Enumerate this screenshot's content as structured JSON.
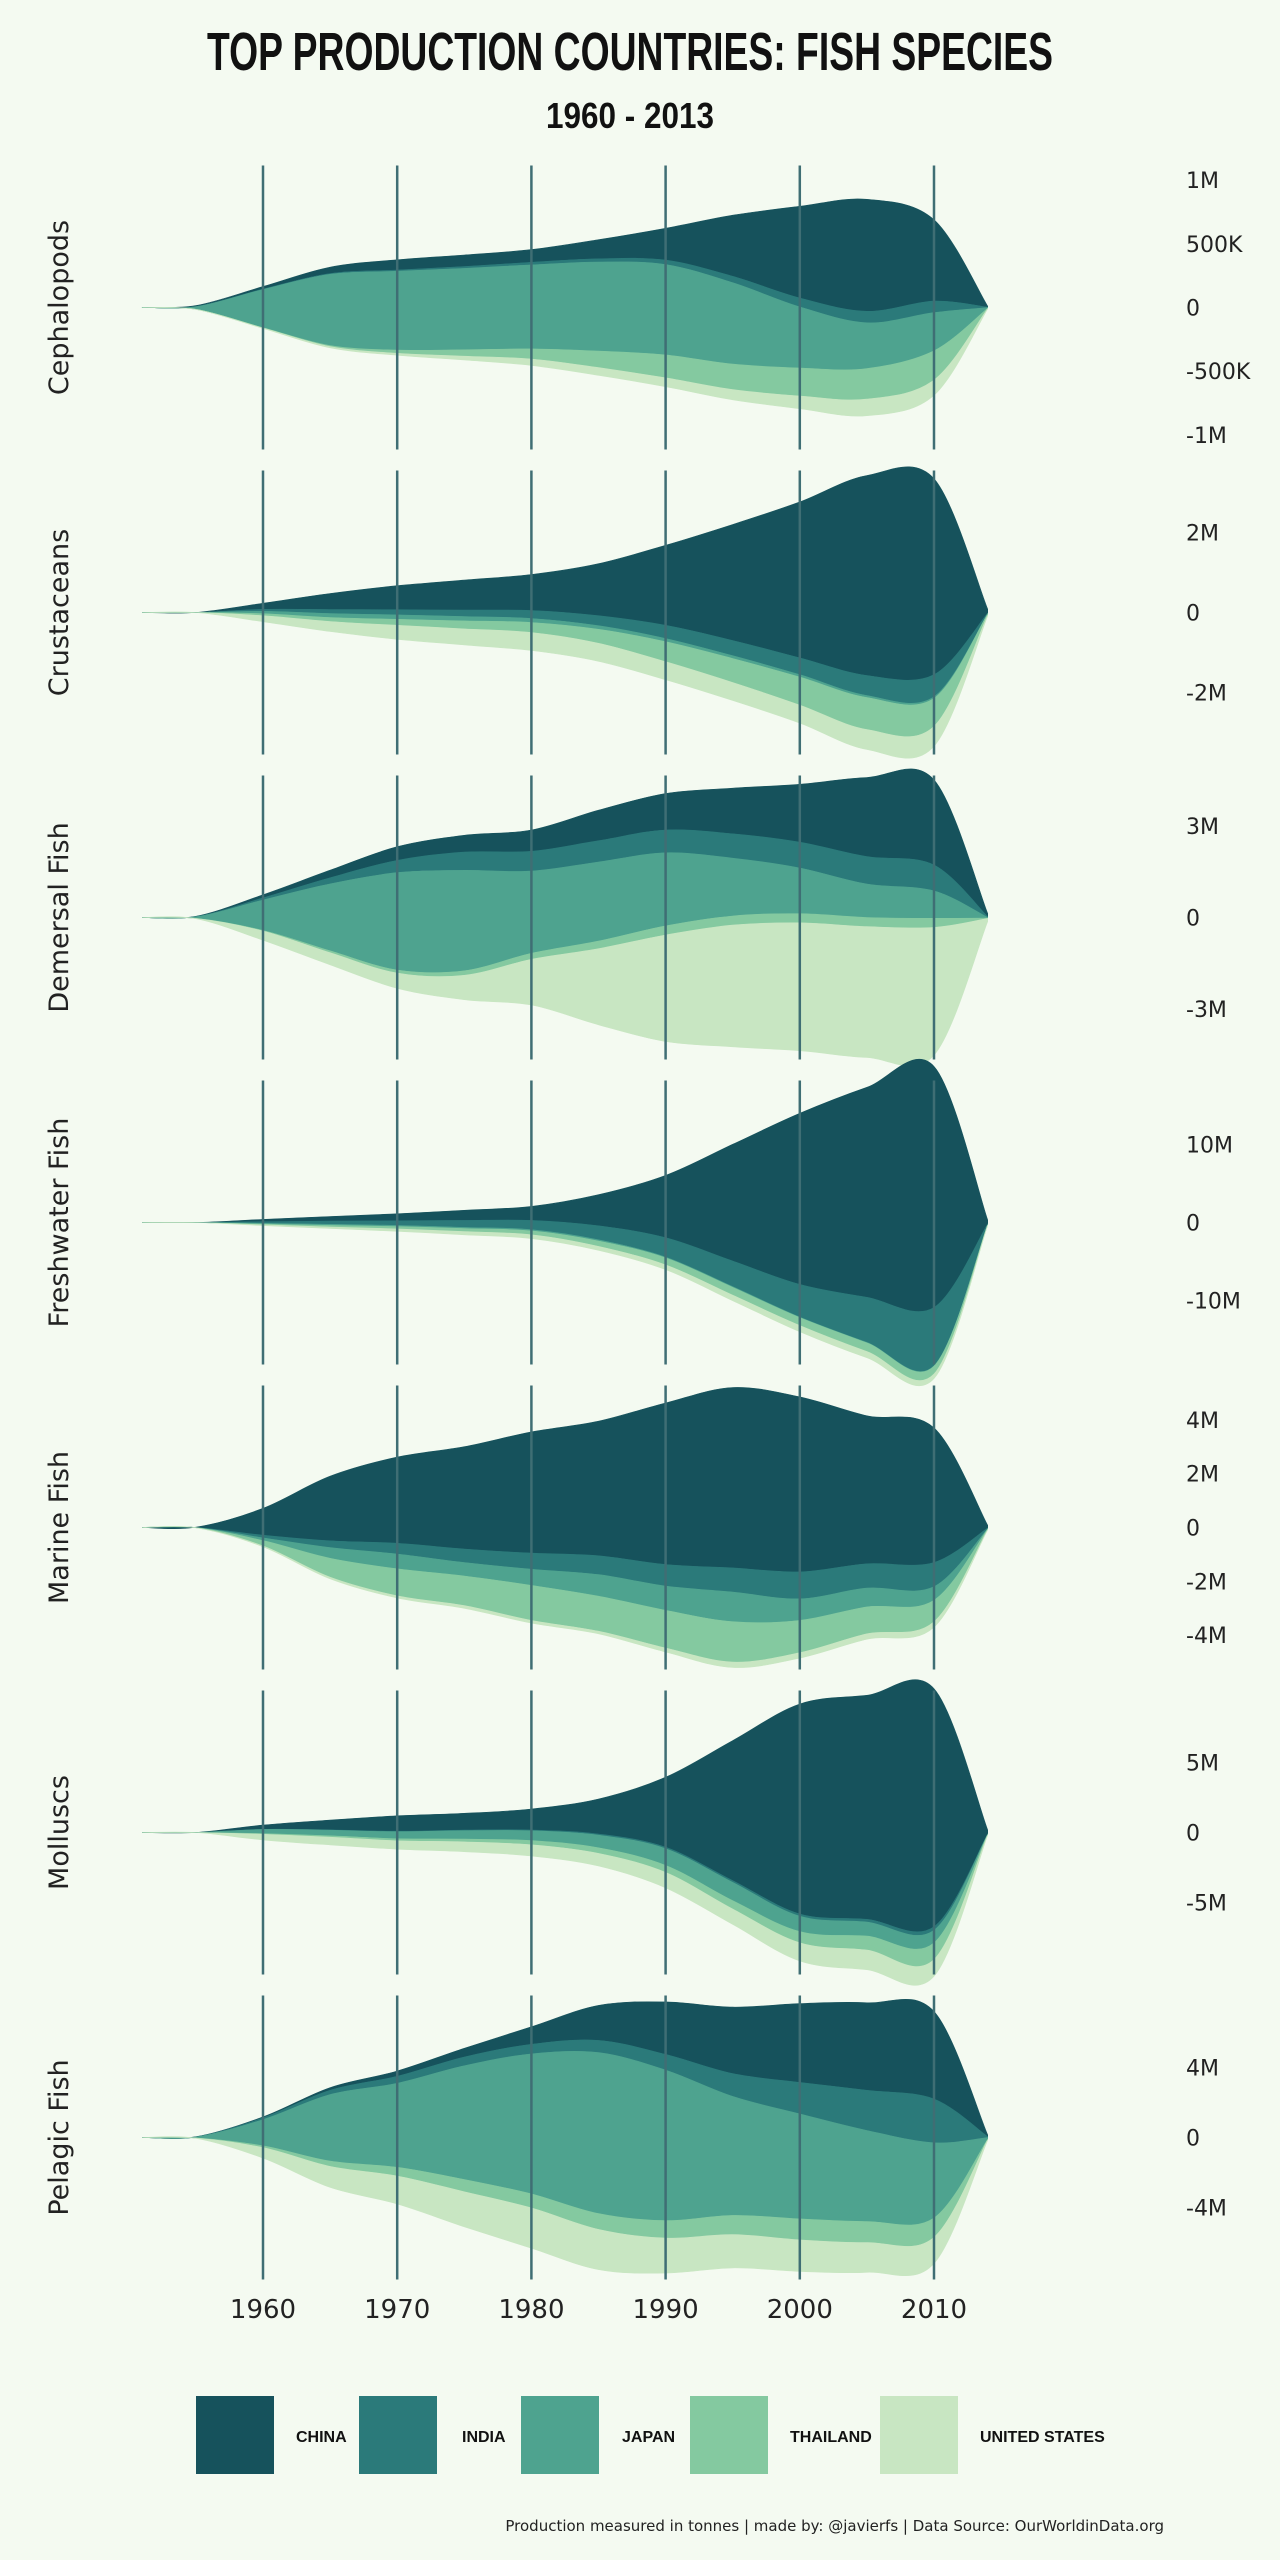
{
  "chart_data": {
    "type": "area",
    "subtype": "streamgraph small multiples",
    "title": "TOP PRODUCTION COUNTRIES: FISH SPECIES",
    "subtitle": "1960 - 2013",
    "x_ticks": [
      1960,
      1970,
      1980,
      1990,
      2000,
      2010
    ],
    "xlim": [
      1951,
      2015
    ],
    "countries": [
      "CHINA",
      "INDIA",
      "JAPAN",
      "THAILAND",
      "UNITED STATES"
    ],
    "colors": {
      "CHINA": "#16525c",
      "INDIA": "#2b7a7a",
      "JAPAN": "#4ea38f",
      "THAILAND": "#84c9a0",
      "UNITED STATES": "#c8e6c2"
    },
    "years": [
      1951,
      1955,
      1960,
      1965,
      1970,
      1975,
      1980,
      1985,
      1990,
      1995,
      2000,
      2005,
      2010,
      2014
    ],
    "panels": [
      {
        "name": "Cephalopods",
        "y_ticks": [
          {
            "v": 1000000,
            "label": "1M"
          },
          {
            "v": 500000,
            "label": "500K"
          },
          {
            "v": 0,
            "label": "0"
          },
          {
            "v": -500000,
            "label": "-500K"
          },
          {
            "v": -1000000,
            "label": "-1M"
          }
        ],
        "ylim": 1100000,
        "series": {
          "CHINA": [
            0,
            8000,
            20000,
            50000,
            80000,
            90000,
            100000,
            150000,
            250000,
            480000,
            720000,
            880000,
            640000,
            8000
          ],
          "INDIA": [
            0,
            1000,
            3000,
            6000,
            10000,
            15000,
            20000,
            25000,
            35000,
            50000,
            70000,
            90000,
            90000,
            3000
          ],
          "JAPAN": [
            3000,
            20000,
            300000,
            560000,
            620000,
            640000,
            660000,
            700000,
            710000,
            640000,
            480000,
            360000,
            300000,
            5000
          ],
          "THAILAND": [
            0,
            500,
            2000,
            8000,
            25000,
            50000,
            80000,
            130000,
            180000,
            200000,
            220000,
            240000,
            230000,
            3000
          ],
          "UNITED STATES": [
            0,
            500,
            4000,
            10000,
            15000,
            30000,
            50000,
            60000,
            70000,
            80000,
            100000,
            130000,
            120000,
            2000
          ]
        }
      },
      {
        "name": "Crustaceans",
        "y_ticks": [
          {
            "v": 2000000,
            "label": "2M"
          },
          {
            "v": 0,
            "label": "0"
          },
          {
            "v": -2000000,
            "label": "-2M"
          }
        ],
        "ylim": 3500000,
        "series": {
          "CHINA": [
            0,
            0,
            150000,
            400000,
            600000,
            750000,
            900000,
            1300000,
            2000000,
            2900000,
            3900000,
            5000000,
            4900000,
            100000
          ],
          "INDIA": [
            0,
            0,
            50000,
            100000,
            130000,
            160000,
            200000,
            250000,
            330000,
            380000,
            420000,
            500000,
            550000,
            20000
          ],
          "JAPAN": [
            0,
            0,
            60000,
            100000,
            110000,
            110000,
            100000,
            90000,
            80000,
            70000,
            60000,
            50000,
            40000,
            1000
          ],
          "THAILAND": [
            0,
            0,
            50000,
            100000,
            150000,
            200000,
            250000,
            350000,
            500000,
            600000,
            700000,
            800000,
            700000,
            30000
          ],
          "UNITED STATES": [
            0,
            0,
            150000,
            250000,
            350000,
            400000,
            450000,
            450000,
            450000,
            450000,
            450000,
            500000,
            500000,
            20000
          ]
        }
      },
      {
        "name": "Demersal Fish",
        "y_ticks": [
          {
            "v": 3000000,
            "label": "3M"
          },
          {
            "v": 0,
            "label": "0"
          },
          {
            "v": -3000000,
            "label": "-3M"
          }
        ],
        "ylim": 4600000,
        "series": {
          "CHINA": [
            0,
            10000,
            100000,
            250000,
            450000,
            550000,
            700000,
            1000000,
            1200000,
            1500000,
            1900000,
            2600000,
            2800000,
            100000
          ],
          "INDIA": [
            0,
            5000,
            70000,
            200000,
            400000,
            600000,
            650000,
            700000,
            750000,
            800000,
            850000,
            900000,
            850000,
            30000
          ],
          "JAPAN": [
            0,
            50000,
            1000000,
            2200000,
            3200000,
            3300000,
            2700000,
            2600000,
            2400000,
            1900000,
            1500000,
            1100000,
            900000,
            20000
          ],
          "THAILAND": [
            0,
            1000,
            20000,
            60000,
            100000,
            150000,
            200000,
            250000,
            300000,
            300000,
            300000,
            300000,
            300000,
            10000
          ],
          "UNITED STATES": [
            0,
            10000,
            300000,
            400000,
            500000,
            800000,
            1500000,
            2500000,
            3500000,
            4000000,
            4200000,
            4300000,
            4200000,
            100000
          ]
        }
      },
      {
        "name": "Freshwater Fish",
        "y_ticks": [
          {
            "v": 10000000,
            "label": "10M"
          },
          {
            "v": 0,
            "label": "0"
          },
          {
            "v": -10000000,
            "label": "-10M"
          }
        ],
        "ylim": 18000000,
        "series": {
          "CHINA": [
            0,
            0,
            300000,
            600000,
            900000,
            1300000,
            1800000,
            4000000,
            8000000,
            15000000,
            22000000,
            27000000,
            31000000,
            500000
          ],
          "INDIA": [
            0,
            0,
            200000,
            400000,
            600000,
            900000,
            1200000,
            1800000,
            2500000,
            3300000,
            4200000,
            5800000,
            7500000,
            100000
          ],
          "JAPAN": [
            0,
            0,
            100000,
            150000,
            150000,
            150000,
            150000,
            150000,
            100000,
            100000,
            80000,
            60000,
            50000,
            1000
          ],
          "THAILAND": [
            0,
            0,
            100000,
            200000,
            300000,
            400000,
            500000,
            700000,
            900000,
            1000000,
            1000000,
            1100000,
            1000000,
            20000
          ],
          "UNITED STATES": [
            0,
            0,
            100000,
            200000,
            300000,
            400000,
            500000,
            500000,
            600000,
            700000,
            800000,
            800000,
            600000,
            10000
          ]
        }
      },
      {
        "name": "Marine Fish",
        "y_ticks": [
          {
            "v": 4000000,
            "label": "4M"
          },
          {
            "v": 2000000,
            "label": "2M"
          },
          {
            "v": 0,
            "label": "0"
          },
          {
            "v": -2000000,
            "label": "-2M"
          },
          {
            "v": -4000000,
            "label": "-4M"
          }
        ],
        "ylim": 5200000,
        "series": {
          "CHINA": [
            0,
            10000,
            1000000,
            2400000,
            3200000,
            3800000,
            4500000,
            5000000,
            6000000,
            6700000,
            6500000,
            5500000,
            5000000,
            100000
          ],
          "INDIA": [
            0,
            3000,
            100000,
            250000,
            400000,
            500000,
            600000,
            700000,
            800000,
            900000,
            1000000,
            900000,
            900000,
            30000
          ],
          "JAPAN": [
            0,
            3000,
            100000,
            400000,
            550000,
            500000,
            600000,
            800000,
            900000,
            1100000,
            800000,
            700000,
            500000,
            10000
          ],
          "THAILAND": [
            0,
            3000,
            200000,
            700000,
            1000000,
            1100000,
            1300000,
            1300000,
            1400000,
            1500000,
            1200000,
            1000000,
            800000,
            20000
          ],
          "UNITED STATES": [
            0,
            1000,
            30000,
            60000,
            80000,
            100000,
            100000,
            100000,
            150000,
            200000,
            200000,
            200000,
            200000,
            5000
          ]
        }
      },
      {
        "name": "Molluscs",
        "y_ticks": [
          {
            "v": 5000000,
            "label": "5M"
          },
          {
            "v": 0,
            "label": "0"
          },
          {
            "v": -5000000,
            "label": "-5M"
          }
        ],
        "ylim": 10000000,
        "series": {
          "CHINA": [
            0,
            0,
            300000,
            700000,
            1100000,
            1200000,
            1500000,
            2500000,
            5000000,
            10000000,
            15000000,
            16000000,
            17000000,
            300000
          ],
          "INDIA": [
            0,
            0,
            10000,
            20000,
            30000,
            40000,
            60000,
            80000,
            100000,
            130000,
            160000,
            200000,
            250000,
            10000
          ],
          "JAPAN": [
            0,
            0,
            300000,
            400000,
            500000,
            600000,
            700000,
            900000,
            1200000,
            1300000,
            1100000,
            1000000,
            900000,
            10000
          ],
          "THAILAND": [
            0,
            0,
            50000,
            100000,
            150000,
            200000,
            300000,
            400000,
            500000,
            600000,
            800000,
            1000000,
            1200000,
            20000
          ],
          "UNITED STATES": [
            0,
            0,
            400000,
            550000,
            600000,
            700000,
            800000,
            900000,
            1100000,
            1100000,
            1300000,
            1400000,
            1200000,
            20000
          ]
        }
      },
      {
        "name": "Pelagic Fish",
        "y_ticks": [
          {
            "v": 4000000,
            "label": "4M"
          },
          {
            "v": 0,
            "label": "0"
          },
          {
            "v": -4000000,
            "label": "-4M"
          }
        ],
        "ylim": 8000000,
        "series": {
          "CHINA": [
            0,
            10000,
            50000,
            150000,
            300000,
            500000,
            1000000,
            2000000,
            3000000,
            3800000,
            4500000,
            5000000,
            5000000,
            100000
          ],
          "INDIA": [
            0,
            10000,
            100000,
            250000,
            400000,
            500000,
            550000,
            700000,
            900000,
            1300000,
            1800000,
            2300000,
            2500000,
            50000
          ],
          "JAPAN": [
            0,
            50000,
            1500000,
            3800000,
            4800000,
            6500000,
            8000000,
            9200000,
            8600000,
            6800000,
            6000000,
            5200000,
            4300000,
            100000
          ],
          "THAILAND": [
            0,
            10000,
            100000,
            300000,
            500000,
            700000,
            800000,
            900000,
            1000000,
            1100000,
            1200000,
            1200000,
            1100000,
            20000
          ],
          "UNITED STATES": [
            0,
            10000,
            600000,
            1200000,
            1600000,
            2000000,
            2300000,
            2300000,
            2000000,
            1900000,
            1800000,
            1700000,
            1500000,
            30000
          ]
        }
      }
    ],
    "footer": "Production measured in tonnes | made by: @javierfs | Data Source: OurWorldinData.org"
  }
}
